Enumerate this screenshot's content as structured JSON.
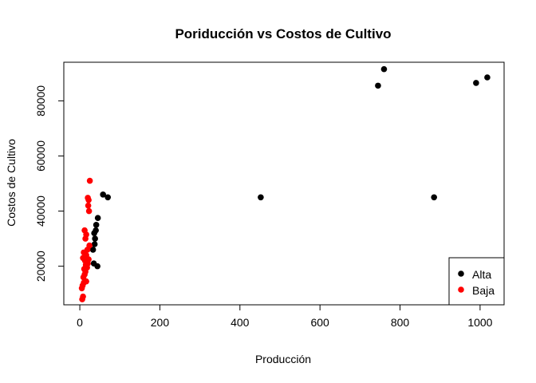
{
  "chart_data": {
    "type": "scatter",
    "title": "Poriducción vs Costos de Cultivo",
    "xlabel": "Producción",
    "ylabel": "Costos de Cultivo",
    "xlim": [
      -40,
      1060
    ],
    "ylim": [
      6000,
      94000
    ],
    "x_ticks": [
      0,
      200,
      400,
      600,
      800,
      1000
    ],
    "x_tick_labels": [
      "0",
      "200",
      "400",
      "600",
      "800",
      "1000"
    ],
    "y_ticks": [
      20000,
      40000,
      60000,
      80000
    ],
    "y_tick_labels": [
      "20000",
      "40000",
      "60000",
      "80000"
    ],
    "grid": false,
    "legend_position": "bottom-right",
    "series": [
      {
        "name": "Alta",
        "color": "#000000",
        "points": [
          [
            35,
            21000
          ],
          [
            44,
            20000
          ],
          [
            33,
            26000
          ],
          [
            37,
            28000
          ],
          [
            38,
            30000
          ],
          [
            36,
            32000
          ],
          [
            40,
            33000
          ],
          [
            41,
            35000
          ],
          [
            45,
            37500
          ],
          [
            58,
            46000
          ],
          [
            70,
            45000
          ],
          [
            452,
            45000
          ],
          [
            745,
            85500
          ],
          [
            760,
            91500
          ],
          [
            885,
            45000
          ],
          [
            990,
            86500
          ],
          [
            1018,
            88500
          ]
        ]
      },
      {
        "name": "Baja",
        "color": "#ff0000",
        "points": [
          [
            6,
            8000
          ],
          [
            8,
            9000
          ],
          [
            5,
            12000
          ],
          [
            7,
            13000
          ],
          [
            10,
            14000
          ],
          [
            16,
            14500
          ],
          [
            9,
            16000
          ],
          [
            12,
            17000
          ],
          [
            14,
            18000
          ],
          [
            11,
            19000
          ],
          [
            18,
            19500
          ],
          [
            15,
            20500
          ],
          [
            20,
            21000
          ],
          [
            13,
            22000
          ],
          [
            22,
            22500
          ],
          [
            8,
            23000
          ],
          [
            16,
            24000
          ],
          [
            10,
            25000
          ],
          [
            19,
            26000
          ],
          [
            24,
            27500
          ],
          [
            14,
            30000
          ],
          [
            16,
            31500
          ],
          [
            12,
            33000
          ],
          [
            23,
            40000
          ],
          [
            21,
            42000
          ],
          [
            22,
            44000
          ],
          [
            20,
            44800
          ],
          [
            25,
            51000
          ]
        ]
      }
    ]
  }
}
